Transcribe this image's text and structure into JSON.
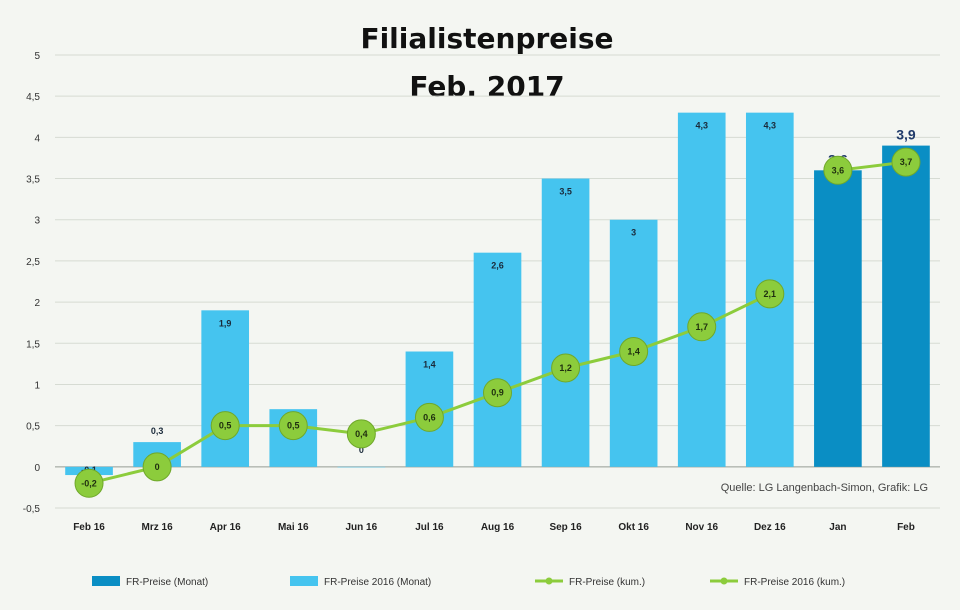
{
  "chart_data": {
    "type": "bar",
    "title_line1": "Filialistenpreise",
    "title_line2": "Feb. 2017",
    "categories": [
      "Feb 16",
      "Mrz 16",
      "Apr 16",
      "Mai 16",
      "Jun 16",
      "Jul 16",
      "Aug 16",
      "Sep 16",
      "Okt 16",
      "Nov 16",
      "Dez 16",
      "Jan",
      "Feb"
    ],
    "ylim": [
      -0.5,
      5
    ],
    "yticks": [
      -0.5,
      0,
      0.5,
      1,
      1.5,
      2,
      2.5,
      3,
      3.5,
      4,
      4.5,
      5
    ],
    "ytick_labels": [
      "-0,5",
      "0",
      "0,5",
      "1",
      "1,5",
      "2",
      "2,5",
      "3",
      "3,5",
      "4",
      "4,5",
      "5"
    ],
    "grid": true,
    "legend_position": "bottom",
    "source": "Quelle: LG Langenbach-Simon, Grafik: LG",
    "series": [
      {
        "name": "FR-Preise (Monat)",
        "kind": "bar",
        "color": "#0a8ec4",
        "values": [
          null,
          null,
          null,
          null,
          null,
          null,
          null,
          null,
          null,
          null,
          null,
          3.6,
          3.9
        ],
        "labels": [
          "",
          "",
          "",
          "",
          "",
          "",
          "",
          "",
          "",
          "",
          "",
          "3,6",
          "3,9"
        ]
      },
      {
        "name": "FR-Preise 2016 (Monat)",
        "kind": "bar",
        "color": "#45c4ef",
        "values": [
          -0.1,
          0.3,
          1.9,
          0.7,
          0,
          1.4,
          2.6,
          3.5,
          3,
          4.3,
          4.3,
          null,
          null
        ],
        "labels": [
          "-0,1",
          "0,3",
          "1,9",
          "0,7",
          "0",
          "1,4",
          "2,6",
          "3,5",
          "3",
          "4,3",
          "4,3",
          "",
          ""
        ]
      },
      {
        "name": "FR-Preise (kum.)",
        "kind": "line",
        "color": "#8ccc3c",
        "values": [
          null,
          null,
          null,
          null,
          null,
          null,
          null,
          null,
          null,
          null,
          null,
          3.6,
          3.7
        ],
        "labels": [
          "",
          "",
          "",
          "",
          "",
          "",
          "",
          "",
          "",
          "",
          "",
          "3,6",
          "3,7"
        ]
      },
      {
        "name": "FR-Preise 2016 (kum.)",
        "kind": "line",
        "color": "#8ccc3c",
        "values": [
          -0.2,
          0,
          0.5,
          0.5,
          0.4,
          0.6,
          0.9,
          1.2,
          1.4,
          1.7,
          2.1,
          null,
          null
        ],
        "labels": [
          "-0,2",
          "0",
          "0,5",
          "0,5",
          "0,4",
          "0,6",
          "0,9",
          "1,2",
          "1,4",
          "1,7",
          "2,1",
          "",
          ""
        ]
      }
    ]
  }
}
